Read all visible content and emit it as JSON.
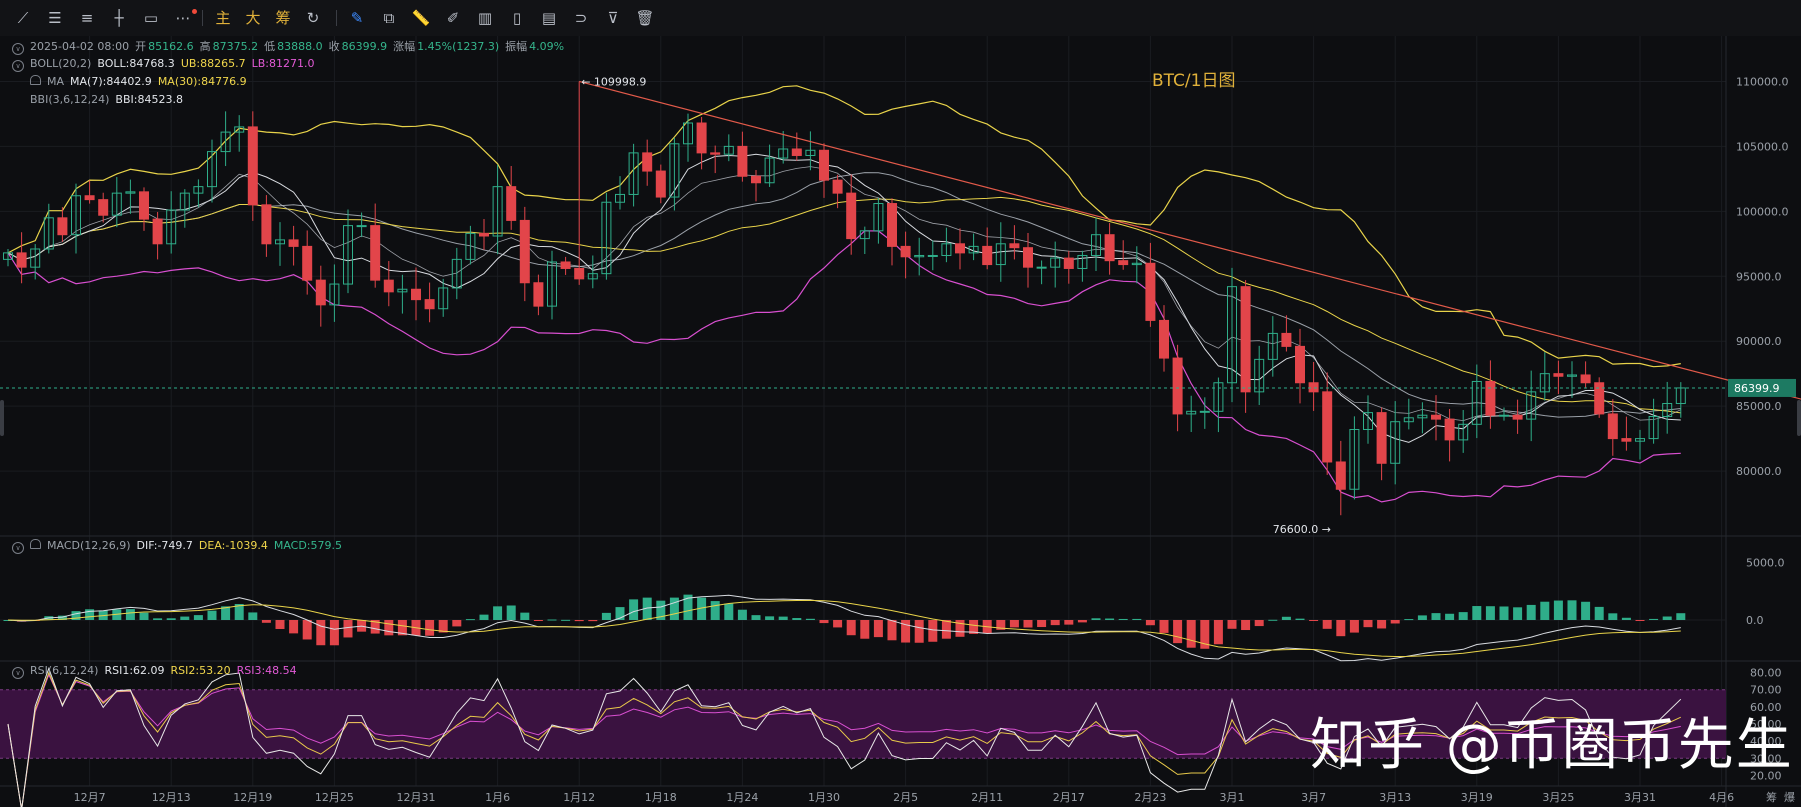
{
  "toolbar": {
    "icons": [
      "line-icon",
      "parallel-lines-icon",
      "horizontal-lines-icon",
      "cross-line-icon",
      "rectangle-icon",
      "more-icon"
    ],
    "chars": [
      "主",
      "大",
      "筹"
    ],
    "icons2": [
      "replay-icon",
      "brush-icon",
      "crop-icon",
      "ruler-icon",
      "pencil-icon",
      "candles-icon",
      "battery-icon",
      "note-icon",
      "magnet-icon",
      "filter-icon",
      "trash-icon"
    ]
  },
  "legend": {
    "ohlc": {
      "date": "2025-04-02 08:00",
      "open_label": "开",
      "open": "85162.6",
      "high_label": "高",
      "high": "87375.2",
      "low_label": "低",
      "low": "83888.0",
      "close_label": "收",
      "close": "86399.9",
      "change_label": "涨幅",
      "change": "1.45%(1237.3)",
      "amp_label": "振幅",
      "amp": "4.09%"
    },
    "boll": {
      "name": "BOLL(20,2)",
      "mid": "BOLL:84768.3",
      "ub": "UB:88265.7",
      "lb": "LB:81271.0"
    },
    "ma": {
      "name": "MA",
      "ma7": "MA(7):84402.9",
      "ma30": "MA(30):84776.9"
    },
    "bbi": {
      "name": "BBI(3,6,12,24)",
      "value": "BBI:84523.8"
    },
    "macd": {
      "name": "MACD(12,26,9)",
      "dif": "DIF:-749.7",
      "dea": "DEA:-1039.4",
      "macd": "MACD:579.5"
    },
    "rsi": {
      "name": "RSI(6,12,24)",
      "r1": "RSI1:62.09",
      "r2": "RSI2:53.20",
      "r3": "RSI3:48.54"
    }
  },
  "colors": {
    "up": "#2fae8a",
    "down": "#e2454a",
    "ma_white": "#d8dbe0",
    "boll_yellow": "#e8d34a",
    "lb_pink": "#d84fd0",
    "trend": "#e25a4a",
    "rsi_band": "#3a1240",
    "rsi1": "#e8e8e8",
    "rsi2": "#e8c94a",
    "rsi3": "#d84fd0"
  },
  "chart_data": {
    "type": "candlestick",
    "title": "BTC/1日图",
    "price_axis": {
      "min": 75000,
      "max": 113500,
      "ticks": [
        80000,
        85000,
        90000,
        95000,
        100000,
        105000,
        110000
      ],
      "tick_labels": [
        "80000.0",
        "85000.0",
        "90000.0",
        "95000.0",
        "100000.0",
        "105000.0",
        "110000.0"
      ]
    },
    "last_price": 86399.9,
    "last_price_label": "86399.9",
    "annotations": [
      {
        "label": "← 109998.9",
        "index": 42,
        "value": 109998.9
      },
      {
        "label": "76600.0 →",
        "index": 98,
        "value": 76600.0
      }
    ],
    "x_labels": [
      {
        "label": "12月7",
        "index": 6
      },
      {
        "label": "12月13",
        "index": 12
      },
      {
        "label": "12月19",
        "index": 18
      },
      {
        "label": "12月25",
        "index": 24
      },
      {
        "label": "12月31",
        "index": 30
      },
      {
        "label": "1月6",
        "index": 36
      },
      {
        "label": "1月12",
        "index": 42
      },
      {
        "label": "1月18",
        "index": 48
      },
      {
        "label": "1月24",
        "index": 54
      },
      {
        "label": "1月30",
        "index": 60
      },
      {
        "label": "2月5",
        "index": 66
      },
      {
        "label": "2月11",
        "index": 72
      },
      {
        "label": "2月17",
        "index": 78
      },
      {
        "label": "2月23",
        "index": 84
      },
      {
        "label": "3月1",
        "index": 90
      },
      {
        "label": "3月7",
        "index": 96
      },
      {
        "label": "3月13",
        "index": 102
      },
      {
        "label": "3月19",
        "index": 108
      },
      {
        "label": "3月25",
        "index": 114
      },
      {
        "label": "3月31",
        "index": 120
      },
      {
        "label": "4月6",
        "index": 126
      }
    ],
    "x_labels_extra": [
      "筹",
      "爆"
    ],
    "closes": [
      96800,
      95700,
      97100,
      99500,
      98200,
      101200,
      100900,
      99700,
      101400,
      101500,
      99400,
      97500,
      100100,
      101400,
      101900,
      104600,
      106100,
      106500,
      100500,
      97500,
      97800,
      97300,
      94700,
      92800,
      94400,
      98900,
      98900,
      94700,
      93800,
      94000,
      93200,
      92500,
      94100,
      96300,
      98300,
      98100,
      101900,
      99300,
      94500,
      92700,
      96100,
      95600,
      94800,
      95200,
      100700,
      101300,
      104500,
      103100,
      101100,
      105200,
      106800,
      104500,
      104400,
      105000,
      102700,
      102200,
      104100,
      104800,
      104300,
      104700,
      102400,
      101400,
      97900,
      98500,
      100600,
      97300,
      96500,
      96600,
      96600,
      97500,
      96800,
      97300,
      95900,
      97500,
      97200,
      95700,
      95700,
      96400,
      95600,
      96600,
      98200,
      96200,
      95900,
      96000,
      91600,
      88700,
      84400,
      84600,
      84600,
      86800,
      94200,
      86100,
      88600,
      90600,
      89600,
      86800,
      86100,
      80700,
      78600,
      83200,
      84500,
      80600,
      83800,
      84100,
      84300,
      84000,
      82400,
      83600,
      86900,
      84300,
      84300,
      84000,
      86100,
      87500,
      87300,
      87400,
      86800,
      84400,
      82500,
      82300,
      82500,
      84200,
      85200,
      86400
    ],
    "ma_value": 84402.9,
    "boll": {
      "mid": 84768.3,
      "ub": 88265.7,
      "lb": 81271.0
    },
    "macd_axis": {
      "ticks": [
        0,
        5000
      ],
      "tick_labels": [
        "0.0",
        "5000.0"
      ]
    },
    "rsi_axis": {
      "ticks": [
        20,
        30,
        40,
        50,
        60,
        70,
        80
      ],
      "tick_labels": [
        "20.00",
        "30.00",
        "40.00",
        "50.00",
        "60.00",
        "70.00",
        "80.00"
      ]
    },
    "trendline": {
      "from": {
        "index": 42,
        "value": 109998.9
      },
      "to": {
        "index": 132,
        "value": 85500
      }
    }
  },
  "watermark": "知乎 @币圈币先生"
}
